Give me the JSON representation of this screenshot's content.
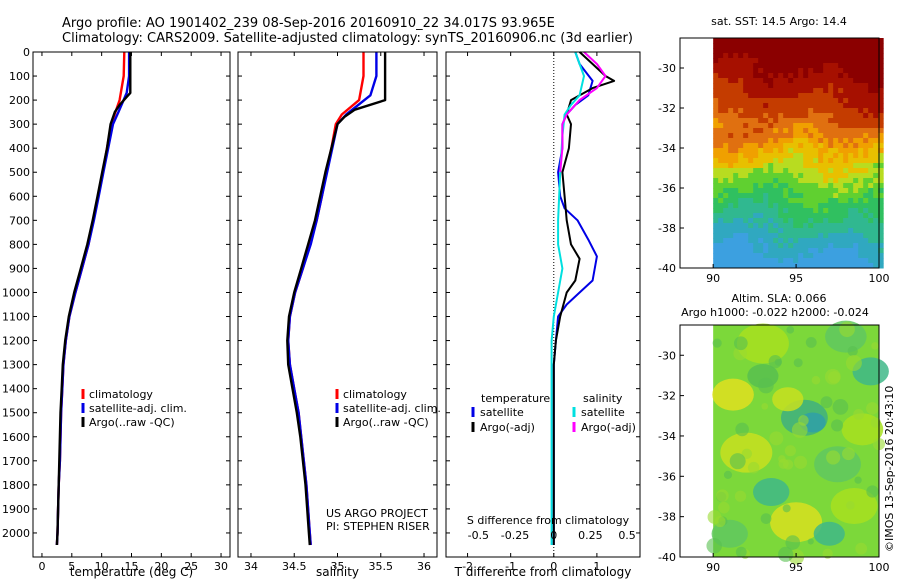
{
  "header": {
    "line1": "Argo profile: AO 1901402_239 08-Sep-2016 20160910_22 34.017S 93.965E",
    "line2": "Climatology: CARS2009. Satellite-adjusted climatology: synTS_20160906.nc (3d earlier)"
  },
  "colors": {
    "climatology": "#ff0000",
    "satellite": "#0000e6",
    "argo": "#000000",
    "salinity_satellite": "#00e0e0",
    "salinity_argo": "#ff00ff"
  },
  "credits": {
    "project": "US ARGO PROJECT",
    "pi": "PI: STEPHEN RISER",
    "watermark": "©IMOS 13-Sep-2016 20:43:10"
  },
  "chart_data": [
    {
      "type": "line",
      "name": "temperature-profile",
      "xlabel": "temperature (deg C)",
      "xlim": [
        -1.5,
        31.5
      ],
      "ylim": [
        0,
        2100
      ],
      "y_reversed": true,
      "xticks": [
        0,
        5,
        10,
        15,
        20,
        25,
        30
      ],
      "yticks": [
        0,
        100,
        200,
        300,
        400,
        500,
        600,
        700,
        800,
        900,
        1000,
        1100,
        1200,
        1300,
        1400,
        1500,
        1600,
        1700,
        1800,
        1900,
        2000
      ],
      "legend": [
        "climatology",
        "satellite-adj. clim.",
        "Argo(..raw -QC)"
      ],
      "series": [
        {
          "name": "climatology",
          "color": "#ff0000",
          "points": [
            [
              13.8,
              0
            ],
            [
              13.7,
              100
            ],
            [
              13.0,
              200
            ],
            [
              12.3,
              250
            ],
            [
              11.6,
              300
            ],
            [
              10.9,
              400
            ],
            [
              10.2,
              500
            ],
            [
              9.4,
              600
            ],
            [
              8.6,
              700
            ],
            [
              7.8,
              800
            ],
            [
              6.7,
              900
            ],
            [
              5.6,
              1000
            ],
            [
              4.6,
              1100
            ],
            [
              4.0,
              1200
            ],
            [
              3.6,
              1300
            ],
            [
              3.4,
              1400
            ],
            [
              3.2,
              1500
            ],
            [
              3.1,
              1600
            ],
            [
              3.0,
              1700
            ],
            [
              2.8,
              1800
            ],
            [
              2.7,
              1900
            ],
            [
              2.6,
              2000
            ],
            [
              2.5,
              2050
            ]
          ]
        },
        {
          "name": "satellite-adj. clim.",
          "color": "#0000e6",
          "points": [
            [
              14.6,
              0
            ],
            [
              14.6,
              100
            ],
            [
              14.2,
              170
            ],
            [
              12.8,
              250
            ],
            [
              11.9,
              300
            ],
            [
              11.1,
              400
            ],
            [
              10.3,
              500
            ],
            [
              9.5,
              600
            ],
            [
              8.7,
              700
            ],
            [
              7.8,
              800
            ],
            [
              6.7,
              900
            ],
            [
              5.6,
              1000
            ],
            [
              4.6,
              1100
            ],
            [
              4.0,
              1200
            ],
            [
              3.6,
              1300
            ],
            [
              3.4,
              1400
            ],
            [
              3.2,
              1500
            ],
            [
              3.1,
              1600
            ],
            [
              3.0,
              1700
            ],
            [
              2.8,
              1800
            ],
            [
              2.7,
              1900
            ],
            [
              2.6,
              2000
            ],
            [
              2.5,
              2050
            ]
          ]
        },
        {
          "name": "Argo(..raw -QC)",
          "color": "#000000",
          "points": [
            [
              14.8,
              0
            ],
            [
              14.8,
              100
            ],
            [
              14.8,
              170
            ],
            [
              13.0,
              220
            ],
            [
              12.2,
              250
            ],
            [
              11.5,
              300
            ],
            [
              10.9,
              400
            ],
            [
              10.1,
              500
            ],
            [
              9.3,
              600
            ],
            [
              8.5,
              700
            ],
            [
              7.6,
              800
            ],
            [
              6.5,
              900
            ],
            [
              5.4,
              1000
            ],
            [
              4.5,
              1100
            ],
            [
              3.9,
              1200
            ],
            [
              3.5,
              1300
            ],
            [
              3.3,
              1400
            ],
            [
              3.1,
              1500
            ],
            [
              3.0,
              1600
            ],
            [
              2.9,
              1700
            ],
            [
              2.8,
              1800
            ],
            [
              2.7,
              1900
            ],
            [
              2.6,
              2000
            ],
            [
              2.5,
              2050
            ]
          ]
        }
      ]
    },
    {
      "type": "line",
      "name": "salinity-profile",
      "xlabel": "salinity",
      "xlim": [
        33.85,
        36.15
      ],
      "ylim": [
        0,
        2100
      ],
      "y_reversed": true,
      "xticks": [
        34,
        34.5,
        35,
        35.5,
        36
      ],
      "legend": [
        "climatology",
        "satellite-adj. clim.",
        "Argo(..raw -QC)"
      ],
      "series": [
        {
          "name": "climatology",
          "color": "#ff0000",
          "points": [
            [
              35.3,
              0
            ],
            [
              35.3,
              100
            ],
            [
              35.25,
              200
            ],
            [
              35.05,
              260
            ],
            [
              34.98,
              300
            ],
            [
              34.93,
              400
            ],
            [
              34.87,
              500
            ],
            [
              34.82,
              600
            ],
            [
              34.76,
              700
            ],
            [
              34.68,
              800
            ],
            [
              34.6,
              900
            ],
            [
              34.51,
              1000
            ],
            [
              34.45,
              1100
            ],
            [
              34.43,
              1200
            ],
            [
              34.45,
              1300
            ],
            [
              34.5,
              1400
            ],
            [
              34.55,
              1500
            ],
            [
              34.58,
              1600
            ],
            [
              34.61,
              1700
            ],
            [
              34.64,
              1800
            ],
            [
              34.66,
              1900
            ],
            [
              34.68,
              2000
            ],
            [
              34.69,
              2050
            ]
          ]
        },
        {
          "name": "satellite-adj. clim.",
          "color": "#0000e6",
          "points": [
            [
              35.45,
              0
            ],
            [
              35.45,
              100
            ],
            [
              35.38,
              180
            ],
            [
              35.1,
              260
            ],
            [
              35.0,
              300
            ],
            [
              34.94,
              400
            ],
            [
              34.88,
              500
            ],
            [
              34.82,
              600
            ],
            [
              34.76,
              700
            ],
            [
              34.69,
              800
            ],
            [
              34.6,
              900
            ],
            [
              34.51,
              1000
            ],
            [
              34.45,
              1100
            ],
            [
              34.43,
              1200
            ],
            [
              34.45,
              1300
            ],
            [
              34.5,
              1400
            ],
            [
              34.55,
              1500
            ],
            [
              34.58,
              1600
            ],
            [
              34.61,
              1700
            ],
            [
              34.64,
              1800
            ],
            [
              34.66,
              1900
            ],
            [
              34.68,
              2000
            ],
            [
              34.69,
              2050
            ]
          ]
        },
        {
          "name": "Argo(..raw -QC)",
          "color": "#000000",
          "points": [
            [
              35.55,
              0
            ],
            [
              35.55,
              120
            ],
            [
              35.55,
              200
            ],
            [
              35.2,
              240
            ],
            [
              35.08,
              270
            ],
            [
              35.0,
              300
            ],
            [
              34.93,
              400
            ],
            [
              34.86,
              500
            ],
            [
              34.8,
              600
            ],
            [
              34.74,
              700
            ],
            [
              34.66,
              800
            ],
            [
              34.58,
              900
            ],
            [
              34.5,
              1000
            ],
            [
              34.44,
              1100
            ],
            [
              34.42,
              1200
            ],
            [
              34.43,
              1300
            ],
            [
              34.48,
              1400
            ],
            [
              34.53,
              1500
            ],
            [
              34.57,
              1600
            ],
            [
              34.6,
              1700
            ],
            [
              34.63,
              1800
            ],
            [
              34.65,
              1900
            ],
            [
              34.67,
              2000
            ],
            [
              34.68,
              2050
            ]
          ]
        }
      ]
    },
    {
      "type": "line",
      "name": "difference-profile",
      "xlabel": "T difference from climatology",
      "top_xlabel": "S difference from climatology",
      "xlim": [
        -2.5,
        2.0
      ],
      "ylim": [
        0,
        2100
      ],
      "y_reversed": true,
      "xticks_bottom": [
        -2,
        -1,
        0,
        1
      ],
      "top_ticks": [
        {
          "pos": -1.75,
          "label": "-0.5"
        },
        {
          "pos": -0.9,
          "label": "-0.25"
        },
        {
          "pos": 0.0,
          "label": "0"
        },
        {
          "pos": 0.85,
          "label": "0.25"
        },
        {
          "pos": 1.7,
          "label": "0.5"
        }
      ],
      "legend_temperature_title": "temperature",
      "legend_salinity_title": "salinity",
      "legend_entries": [
        "satellite",
        "Argo(-adj)",
        "satellite",
        "Argo(-adj)"
      ],
      "series": [
        {
          "name": "temperature satellite",
          "color": "#0000e6",
          "points": [
            [
              0.5,
              0
            ],
            [
              0.6,
              50
            ],
            [
              0.9,
              120
            ],
            [
              0.8,
              180
            ],
            [
              0.5,
              220
            ],
            [
              0.3,
              260
            ],
            [
              0.2,
              300
            ],
            [
              0.2,
              400
            ],
            [
              0.1,
              500
            ],
            [
              0.15,
              600
            ],
            [
              0.25,
              650
            ],
            [
              0.55,
              700
            ],
            [
              0.8,
              780
            ],
            [
              1.0,
              850
            ],
            [
              0.9,
              950
            ],
            [
              0.6,
              1000
            ],
            [
              0.3,
              1050
            ],
            [
              0.1,
              1100
            ],
            [
              0.05,
              1200
            ],
            [
              0.0,
              1300
            ],
            [
              0.0,
              1400
            ],
            [
              0.0,
              1600
            ],
            [
              0.0,
              1800
            ],
            [
              0.0,
              2000
            ],
            [
              0.0,
              2050
            ]
          ]
        },
        {
          "name": "temperature Argo(-adj)",
          "color": "#000000",
          "points": [
            [
              0.6,
              0
            ],
            [
              0.9,
              50
            ],
            [
              1.2,
              100
            ],
            [
              1.4,
              120
            ],
            [
              0.9,
              150
            ],
            [
              0.4,
              200
            ],
            [
              0.3,
              260
            ],
            [
              0.4,
              300
            ],
            [
              0.35,
              400
            ],
            [
              0.2,
              500
            ],
            [
              0.25,
              600
            ],
            [
              0.3,
              700
            ],
            [
              0.4,
              800
            ],
            [
              0.6,
              860
            ],
            [
              0.5,
              950
            ],
            [
              0.3,
              1000
            ],
            [
              0.15,
              1100
            ],
            [
              0.05,
              1200
            ],
            [
              0.0,
              1300
            ],
            [
              0.0,
              1500
            ],
            [
              0.0,
              1700
            ],
            [
              0.0,
              1900
            ],
            [
              0.0,
              2050
            ]
          ]
        },
        {
          "name": "salinity satellite",
          "color": "#00e0e0",
          "points": [
            [
              0.5,
              0
            ],
            [
              0.6,
              50
            ],
            [
              0.7,
              100
            ],
            [
              0.6,
              180
            ],
            [
              0.4,
              220
            ],
            [
              0.25,
              260
            ],
            [
              0.2,
              350
            ],
            [
              0.15,
              500
            ],
            [
              0.1,
              700
            ],
            [
              0.1,
              800
            ],
            [
              0.2,
              900
            ],
            [
              0.1,
              1000
            ],
            [
              0.0,
              1100
            ],
            [
              -0.05,
              1200
            ],
            [
              -0.05,
              1400
            ],
            [
              -0.05,
              1600
            ],
            [
              -0.05,
              1800
            ],
            [
              -0.05,
              2000
            ],
            [
              -0.05,
              2050
            ]
          ]
        },
        {
          "name": "salinity Argo(-adj)",
          "color": "#ff00ff",
          "points": [
            [
              0.7,
              0
            ],
            [
              1.0,
              50
            ],
            [
              1.2,
              100
            ],
            [
              1.0,
              150
            ],
            [
              0.6,
              200
            ],
            [
              0.3,
              260
            ],
            [
              0.2,
              300
            ],
            [
              0.2,
              400
            ],
            [
              0.15,
              500
            ]
          ]
        }
      ]
    },
    {
      "type": "heatmap",
      "name": "sst-map",
      "title": "sat. SST: 14.5 Argo: 14.4",
      "xlim": [
        88,
        100
      ],
      "ylim": [
        -40,
        -28.5
      ],
      "data_xlim": [
        90,
        100
      ],
      "xticks": [
        90,
        95,
        100
      ],
      "yticks": [
        -30,
        -32,
        -34,
        -36,
        -38,
        -40
      ]
    },
    {
      "type": "heatmap",
      "name": "sla-map",
      "title_line1": "Altim. SLA: 0.066",
      "title_line2": "Argo h1000: -0.022 h2000: -0.024",
      "xlim": [
        88,
        100
      ],
      "ylim": [
        -40,
        -28.5
      ],
      "data_xlim": [
        90,
        100
      ],
      "xticks": [
        90,
        95,
        100
      ],
      "yticks": [
        -30,
        -32,
        -34,
        -36,
        -38,
        -40
      ]
    }
  ]
}
